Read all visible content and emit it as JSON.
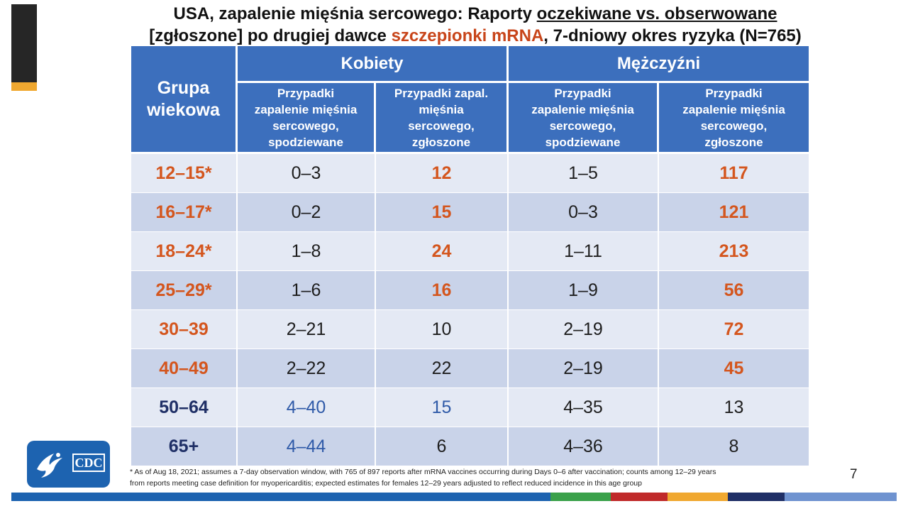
{
  "title": {
    "line1_part1": "USA, zapalenie mięśnia sercowego: Raporty ",
    "line1_underlined": "oczekiwane vs. obserwowane",
    "line2_part1": "[zgłoszone] po drugiej dawce ",
    "line2_highlight": "szczepionki mRNA",
    "line2_part2": ", 7-dniowy okres ryzyka (N=765)"
  },
  "table": {
    "group_header_line1": "Grupa",
    "group_header_line2": "wiekowa",
    "women_header": "Kobiety",
    "men_header": "Mężczyźni",
    "women_expected_lines": [
      "Przypadki",
      "zapalenie mięśnia",
      "sercowego,",
      "spodziewane"
    ],
    "women_reported_lines": [
      "Przypadki zapal.",
      "mięśnia",
      "sercowego,",
      "zgłoszone"
    ],
    "men_expected_lines": [
      "Przypadki",
      "zapalenie mięśnia",
      "sercowego,",
      "spodziewane"
    ],
    "men_reported_lines": [
      "Przypadki",
      "zapalenie mięśnia",
      "sercowego,",
      "zgłoszone"
    ],
    "rows": [
      {
        "age": "12–15*",
        "w_exp": "0–3",
        "w_rep": "12",
        "m_exp": "1–5",
        "m_rep": "117"
      },
      {
        "age": "16–17*",
        "w_exp": "0–2",
        "w_rep": "15",
        "m_exp": "0–3",
        "m_rep": "121"
      },
      {
        "age": "18–24*",
        "w_exp": "1–8",
        "w_rep": "24",
        "m_exp": "1–11",
        "m_rep": "213"
      },
      {
        "age": "25–29*",
        "w_exp": "1–6",
        "w_rep": "16",
        "m_exp": "1–9",
        "m_rep": "56"
      },
      {
        "age": "30–39",
        "w_exp": "2–21",
        "w_rep": "10",
        "m_exp": "2–19",
        "m_rep": "72"
      },
      {
        "age": "40–49",
        "w_exp": "2–22",
        "w_rep": "22",
        "m_exp": "2–19",
        "m_rep": "45"
      },
      {
        "age": "50–64",
        "w_exp": "4–40",
        "w_rep": "15",
        "m_exp": "4–35",
        "m_rep": "13"
      },
      {
        "age": "65+",
        "w_exp": "4–44",
        "w_rep": "6",
        "m_exp": "4–36",
        "m_rep": "8"
      }
    ]
  },
  "logo": {
    "text": "CDC",
    "icon": "hhs-eagle-icon"
  },
  "footnote": {
    "line1": "* As of Aug 18, 2021; assumes a 7-day observation window, with 765 of 897 reports after mRNA vaccines occurring during Days 0–6 after vaccination; counts among 12–29 years",
    "line2": "from reports meeting case definition for myopericarditis; expected estimates for females 12–29 years adjusted to reflect reduced incidence in this age group"
  },
  "page_number": "7",
  "colors": {
    "header_blue": "#3c6fbd",
    "row_light": "#e4e9f4",
    "row_dark": "#c9d3e9",
    "accent_orange": "#d4561e",
    "accent_navy": "#1f2f66",
    "title_highlight": "#c8451a",
    "stripe": [
      "#1d63b0",
      "#1d63b0",
      "#3aa14a",
      "#c02a2a",
      "#f0a830",
      "#1f2f66",
      "#6f93d0"
    ]
  }
}
